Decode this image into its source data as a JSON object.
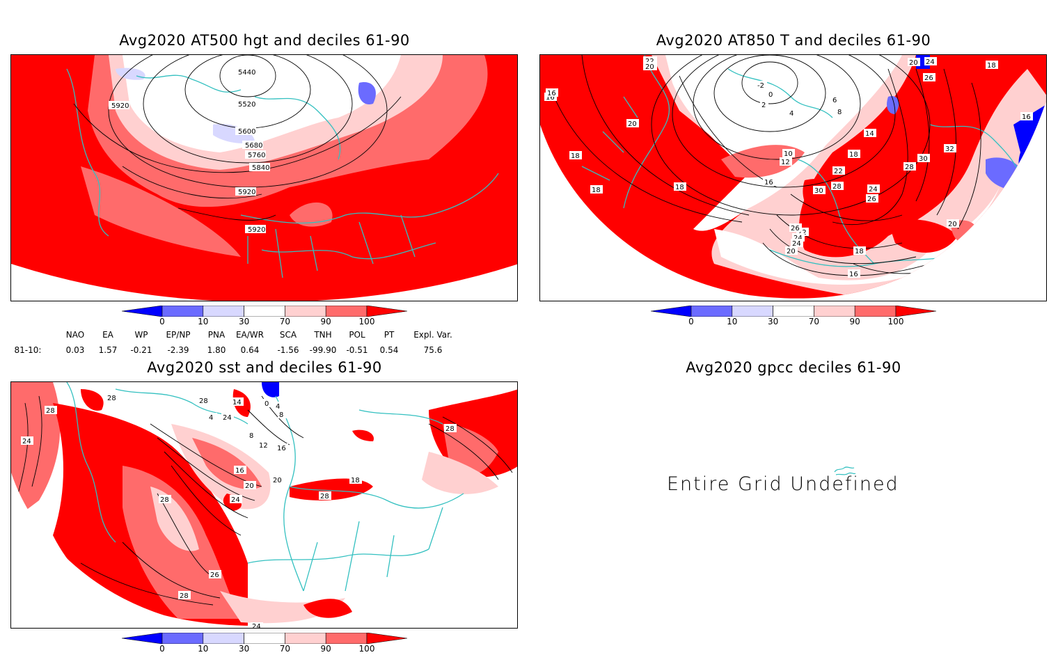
{
  "panels": [
    {
      "title": "Avg2020 AT500 hgt and deciles 61-90",
      "contour_labels": [
        "5440",
        "5520",
        "5600",
        "5680",
        "5760",
        "5840",
        "5920",
        "5920",
        "5920"
      ]
    },
    {
      "title": "Avg2020 AT850 T and deciles 61-90",
      "contour_labels": [
        "22",
        "20",
        "-2",
        "0",
        "2",
        "4",
        "6",
        "8",
        "10",
        "12",
        "14",
        "16",
        "16",
        "18",
        "18",
        "18",
        "18",
        "20",
        "22",
        "24",
        "26",
        "28",
        "30",
        "32",
        "24",
        "26",
        "30",
        "28",
        "22",
        "24",
        "26",
        "20",
        "18",
        "16",
        "16",
        "20",
        "24",
        "18",
        "20",
        "16"
      ]
    },
    {
      "title": "Avg2020 sst and deciles 61-90",
      "contour_labels": [
        "28",
        "24",
        "28",
        "28",
        "24",
        "28",
        "26",
        "28",
        "16",
        "20",
        "12",
        "8",
        "4",
        "0",
        "4",
        "8",
        "14",
        "16",
        "18",
        "20",
        "24",
        "28",
        "28",
        "24"
      ]
    },
    {
      "title": "Avg2020 gpcc deciles 61-90",
      "message": "Entire Grid Undefined"
    }
  ],
  "colorbar": {
    "labels": [
      "0",
      "10",
      "30",
      "70",
      "90",
      "100"
    ],
    "colors": [
      "#0000ff",
      "#6b6bff",
      "#d8d8ff",
      "#ffffff",
      "#ffd0d0",
      "#ff6b6b",
      "#ff0000"
    ]
  },
  "indices": {
    "headers": [
      "NAO",
      "EA",
      "WP",
      "EP/NP",
      "PNA",
      "EA/WR",
      "SCA",
      "TNH",
      "POL",
      "PT",
      "Expl. Var."
    ],
    "row_label": "81-10:",
    "values": [
      "0.03",
      "1.57",
      "-0.21",
      "-2.39",
      "1.80",
      "0.64",
      "-1.56",
      "-99.90",
      "-0.51",
      "0.54",
      "75.6"
    ]
  },
  "map_colors": {
    "red": "#ff0000",
    "light_red": "#ff6b6b",
    "pale_red": "#ffd0d0",
    "pale_blue": "#d8d8ff",
    "blue": "#6b6bff",
    "deep_blue": "#0000ff",
    "coast": "#33c0c0"
  }
}
